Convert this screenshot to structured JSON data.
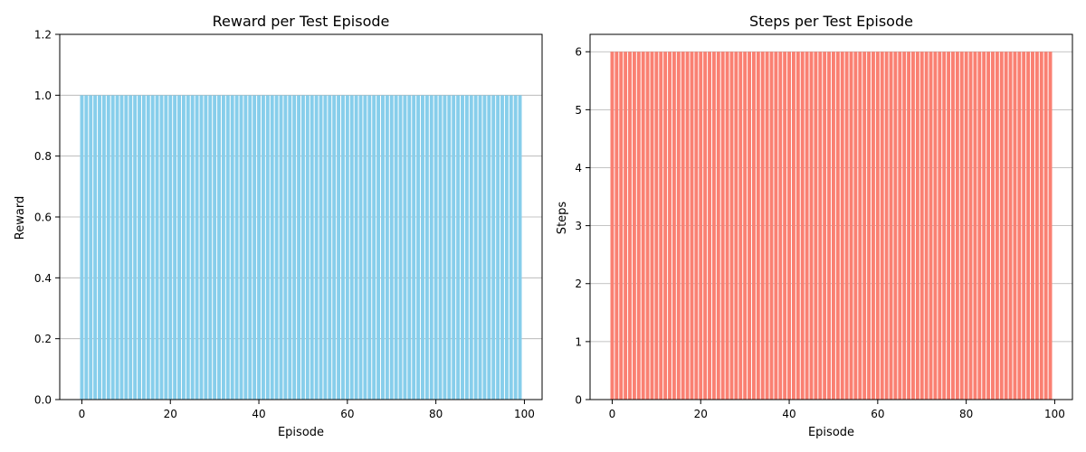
{
  "chart_data": [
    {
      "type": "bar",
      "title": "Reward per Test Episode",
      "xlabel": "Episode",
      "ylabel": "Reward",
      "x": [
        0,
        1,
        2,
        3,
        4,
        5,
        6,
        7,
        8,
        9,
        10,
        11,
        12,
        13,
        14,
        15,
        16,
        17,
        18,
        19,
        20,
        21,
        22,
        23,
        24,
        25,
        26,
        27,
        28,
        29,
        30,
        31,
        32,
        33,
        34,
        35,
        36,
        37,
        38,
        39,
        40,
        41,
        42,
        43,
        44,
        45,
        46,
        47,
        48,
        49,
        50,
        51,
        52,
        53,
        54,
        55,
        56,
        57,
        58,
        59,
        60,
        61,
        62,
        63,
        64,
        65,
        66,
        67,
        68,
        69,
        70,
        71,
        72,
        73,
        74,
        75,
        76,
        77,
        78,
        79,
        80,
        81,
        82,
        83,
        84,
        85,
        86,
        87,
        88,
        89,
        90,
        91,
        92,
        93,
        94,
        95,
        96,
        97,
        98,
        99
      ],
      "values": [
        1,
        1,
        1,
        1,
        1,
        1,
        1,
        1,
        1,
        1,
        1,
        1,
        1,
        1,
        1,
        1,
        1,
        1,
        1,
        1,
        1,
        1,
        1,
        1,
        1,
        1,
        1,
        1,
        1,
        1,
        1,
        1,
        1,
        1,
        1,
        1,
        1,
        1,
        1,
        1,
        1,
        1,
        1,
        1,
        1,
        1,
        1,
        1,
        1,
        1,
        1,
        1,
        1,
        1,
        1,
        1,
        1,
        1,
        1,
        1,
        1,
        1,
        1,
        1,
        1,
        1,
        1,
        1,
        1,
        1,
        1,
        1,
        1,
        1,
        1,
        1,
        1,
        1,
        1,
        1,
        1,
        1,
        1,
        1,
        1,
        1,
        1,
        1,
        1,
        1,
        1,
        1,
        1,
        1,
        1,
        1,
        1,
        1,
        1,
        1
      ],
      "xlim": [
        -5.0,
        104.0
      ],
      "ylim": [
        0,
        1.2
      ],
      "xticks": [
        0,
        20,
        40,
        60,
        80,
        100
      ],
      "xtick_labels": [
        "0",
        "20",
        "40",
        "60",
        "80",
        "100"
      ],
      "yticks": [
        0,
        0.2,
        0.4,
        0.6,
        0.8,
        1.0,
        1.2
      ],
      "ytick_labels": [
        "0.0",
        "0.2",
        "0.4",
        "0.6",
        "0.8",
        "1.0",
        "1.2"
      ],
      "grid": "y",
      "color": "#87ceeb"
    },
    {
      "type": "bar",
      "title": "Steps per Test Episode",
      "xlabel": "Episode",
      "ylabel": "Steps",
      "x": [
        0,
        1,
        2,
        3,
        4,
        5,
        6,
        7,
        8,
        9,
        10,
        11,
        12,
        13,
        14,
        15,
        16,
        17,
        18,
        19,
        20,
        21,
        22,
        23,
        24,
        25,
        26,
        27,
        28,
        29,
        30,
        31,
        32,
        33,
        34,
        35,
        36,
        37,
        38,
        39,
        40,
        41,
        42,
        43,
        44,
        45,
        46,
        47,
        48,
        49,
        50,
        51,
        52,
        53,
        54,
        55,
        56,
        57,
        58,
        59,
        60,
        61,
        62,
        63,
        64,
        65,
        66,
        67,
        68,
        69,
        70,
        71,
        72,
        73,
        74,
        75,
        76,
        77,
        78,
        79,
        80,
        81,
        82,
        83,
        84,
        85,
        86,
        87,
        88,
        89,
        90,
        91,
        92,
        93,
        94,
        95,
        96,
        97,
        98,
        99
      ],
      "values": [
        6,
        6,
        6,
        6,
        6,
        6,
        6,
        6,
        6,
        6,
        6,
        6,
        6,
        6,
        6,
        6,
        6,
        6,
        6,
        6,
        6,
        6,
        6,
        6,
        6,
        6,
        6,
        6,
        6,
        6,
        6,
        6,
        6,
        6,
        6,
        6,
        6,
        6,
        6,
        6,
        6,
        6,
        6,
        6,
        6,
        6,
        6,
        6,
        6,
        6,
        6,
        6,
        6,
        6,
        6,
        6,
        6,
        6,
        6,
        6,
        6,
        6,
        6,
        6,
        6,
        6,
        6,
        6,
        6,
        6,
        6,
        6,
        6,
        6,
        6,
        6,
        6,
        6,
        6,
        6,
        6,
        6,
        6,
        6,
        6,
        6,
        6,
        6,
        6,
        6,
        6,
        6,
        6,
        6,
        6,
        6,
        6,
        6,
        6,
        6
      ],
      "xlim": [
        -5.0,
        104.0
      ],
      "ylim": [
        0,
        6.3
      ],
      "xticks": [
        0,
        20,
        40,
        60,
        80,
        100
      ],
      "xtick_labels": [
        "0",
        "20",
        "40",
        "60",
        "80",
        "100"
      ],
      "yticks": [
        0,
        1,
        2,
        3,
        4,
        5,
        6
      ],
      "ytick_labels": [
        "0",
        "1",
        "2",
        "3",
        "4",
        "5",
        "6"
      ],
      "grid": "y",
      "color": "#fa8072"
    }
  ]
}
